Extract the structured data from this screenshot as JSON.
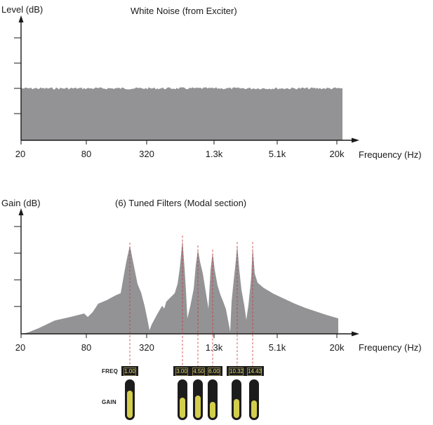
{
  "top_chart": {
    "ylabel": "Level (dB)",
    "title": "White Noise (from Exciter)",
    "xlabel": "Frequency (Hz)",
    "x_ticks": [
      "20",
      "80",
      "320",
      "1.3k",
      "5.1k",
      "20k"
    ]
  },
  "bottom_chart": {
    "ylabel": "Gain (dB)",
    "title": "(6) Tuned Filters (Modal section)",
    "xlabel": "Frequency (Hz)",
    "x_ticks": [
      "20",
      "80",
      "320",
      "1.3k",
      "5.1k",
      "20k"
    ]
  },
  "controls": {
    "freq_label": "FREQ",
    "gain_label": "GAIN",
    "filters": [
      {
        "freq": "1.00",
        "gain": 0.75
      },
      {
        "freq": "3.00",
        "gain": 0.55
      },
      {
        "freq": "4.50",
        "gain": 0.62
      },
      {
        "freq": "6.00",
        "gain": 0.45
      },
      {
        "freq": "10.32",
        "gain": 0.52
      },
      {
        "freq": "14.43",
        "gain": 0.48
      }
    ]
  },
  "colors": {
    "fill": "#939396",
    "axis": "#1a1a1a",
    "guide": "#d0342c",
    "slider_track": "#1c1c1c",
    "slider_fill": "#d3cd4c",
    "freq_text": "#e8dc6a"
  }
}
